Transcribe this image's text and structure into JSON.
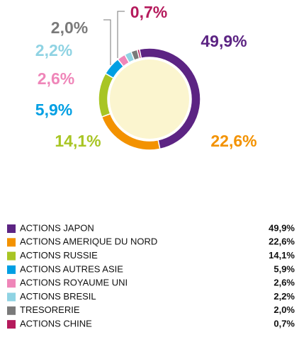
{
  "chart_data": {
    "type": "donut",
    "categories": [
      "ACTIONS JAPON",
      "ACTIONS AMERIQUE DU NORD",
      "ACTIONS RUSSIE",
      "ACTIONS AUTRES ASIE",
      "ACTIONS ROYAUME UNI",
      "ACTIONS BRESIL",
      "TRESORERIE",
      "ACTIONS CHINE"
    ],
    "values": [
      49.9,
      22.6,
      14.1,
      5.9,
      2.6,
      2.2,
      2.0,
      0.7
    ],
    "value_labels": [
      "49,9%",
      "22,6%",
      "14,1%",
      "5,9%",
      "2,6%",
      "2,2%",
      "2,0%",
      "0,7%"
    ],
    "colors": [
      "#5c2483",
      "#f39200",
      "#a8c524",
      "#009fe3",
      "#ef86b9",
      "#8fd3e3",
      "#7a7a7a",
      "#b51a5c"
    ]
  }
}
